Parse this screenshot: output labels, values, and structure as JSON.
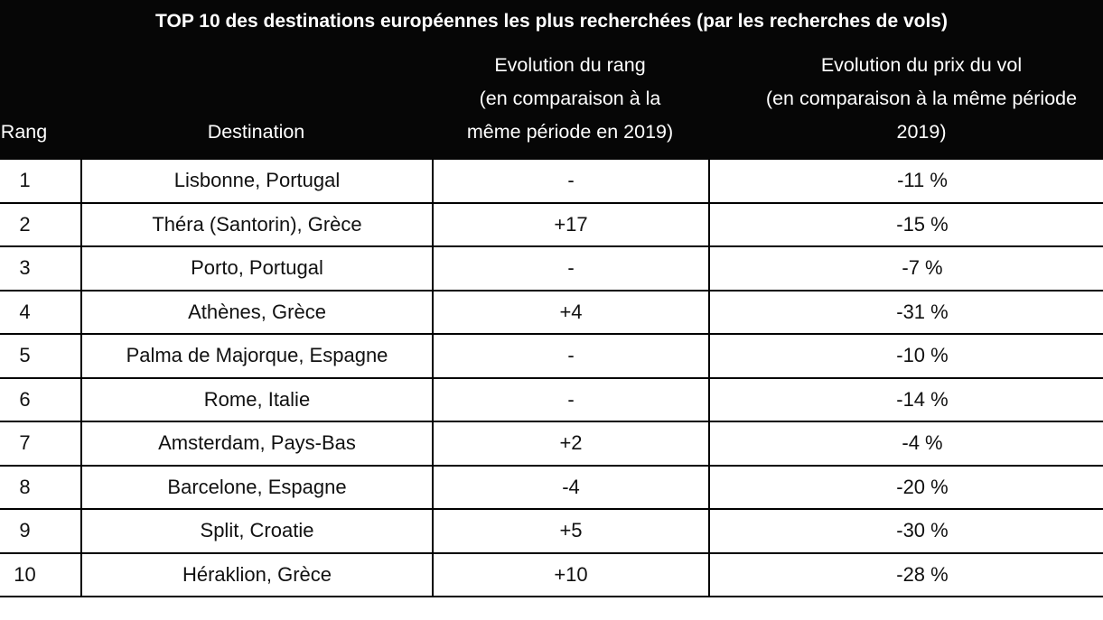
{
  "title": "TOP 10 des destinations européennes les plus recherchées (par les recherches de vols)",
  "columns": {
    "rank": "Rang",
    "destination": "Destination",
    "rank_change": [
      "Evolution du rang",
      "(en comparaison à la",
      "même période en 2019)"
    ],
    "price_change": [
      "Evolution du prix du vol",
      "(en comparaison à la même période",
      "2019)"
    ]
  },
  "rows": [
    {
      "rank": "1",
      "destination": "Lisbonne, Portugal",
      "rank_change": "-",
      "price_change": "-11 %"
    },
    {
      "rank": "2",
      "destination": "Théra (Santorin), Grèce",
      "rank_change": "+17",
      "price_change": "-15 %"
    },
    {
      "rank": "3",
      "destination": "Porto, Portugal",
      "rank_change": "-",
      "price_change": "-7 %"
    },
    {
      "rank": "4",
      "destination": "Athènes, Grèce",
      "rank_change": "+4",
      "price_change": "-31 %"
    },
    {
      "rank": "5",
      "destination": "Palma de Majorque, Espagne",
      "rank_change": "-",
      "price_change": "-10 %"
    },
    {
      "rank": "6",
      "destination": "Rome, Italie",
      "rank_change": "-",
      "price_change": "-14 %"
    },
    {
      "rank": "7",
      "destination": "Amsterdam, Pays-Bas",
      "rank_change": "+2",
      "price_change": "-4 %"
    },
    {
      "rank": "8",
      "destination": "Barcelone, Espagne",
      "rank_change": "-4",
      "price_change": "-20 %"
    },
    {
      "rank": "9",
      "destination": "Split, Croatie",
      "rank_change": "+5",
      "price_change": "-30 %"
    },
    {
      "rank": "10",
      "destination": "Héraklion, Grèce",
      "rank_change": "+10",
      "price_change": "-28 %"
    }
  ]
}
